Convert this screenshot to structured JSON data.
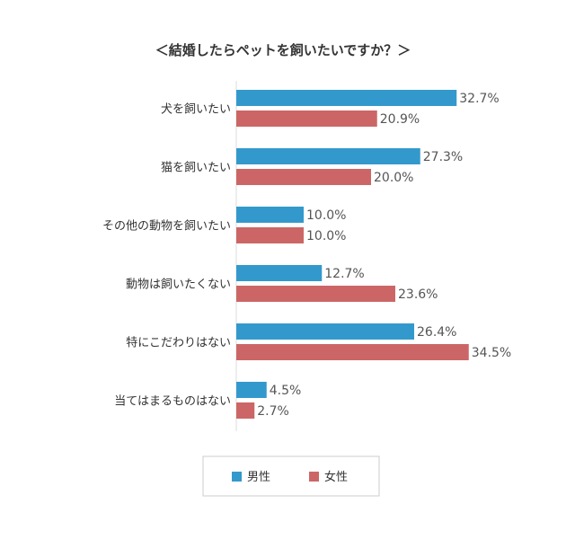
{
  "chart_data": {
    "type": "bar",
    "orientation": "horizontal",
    "title": "＜結婚したらペットを飼いたいですか？＞",
    "categories": [
      "犬を飼いたい",
      "猫を飼いたい",
      "その他の動物を飼いたい",
      "動物は飼いたくない",
      "特にこだわりはない",
      "当てはまるものはない"
    ],
    "series": [
      {
        "name": "男性",
        "color": "#3399cc",
        "values": [
          32.7,
          27.3,
          10.0,
          12.7,
          26.4,
          4.5
        ]
      },
      {
        "name": "女性",
        "color": "#cc6666",
        "values": [
          20.9,
          20.0,
          10.0,
          23.6,
          34.5,
          2.7
        ]
      }
    ],
    "value_suffix": "%",
    "xlim": [
      0,
      40
    ],
    "grid": false,
    "legend_position": "bottom-center"
  }
}
